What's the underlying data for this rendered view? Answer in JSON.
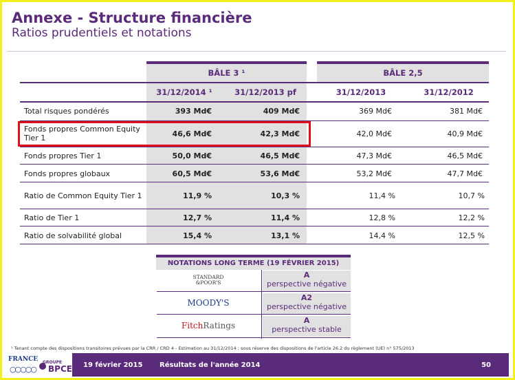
{
  "header": {
    "title": "Annexe - Structure financière",
    "subtitle": "Ratios prudentiels et notations"
  },
  "table": {
    "group_headers": [
      "BÂLE 3 ¹",
      "BÂLE 2,5"
    ],
    "columns": [
      "31/12/2014 ¹",
      "31/12/2013 pf",
      "31/12/2013",
      "31/12/2012"
    ],
    "rows": [
      {
        "label": "Total risques pondérés",
        "values": [
          "393 Md€",
          "409 Md€",
          "369 Md€",
          "381 Md€"
        ]
      },
      {
        "label": "Fonds propres Common Equity Tier 1",
        "values": [
          "46,6 Md€",
          "42,3 Md€",
          "42,0 Md€",
          "40,9 Md€"
        ]
      },
      {
        "label": "Fonds propres Tier 1",
        "values": [
          "50,0 Md€",
          "46,5 Md€",
          "47,3 Md€",
          "46,5 Md€"
        ]
      },
      {
        "label": "Fonds propres globaux",
        "values": [
          "60,5 Md€",
          "53,6 Md€",
          "53,2 Md€",
          "47,7 Md€"
        ]
      },
      {
        "label": "Ratio de Common Equity Tier 1",
        "values": [
          "11,9 %",
          "10,3 %",
          "11,4 %",
          "10,7 %"
        ]
      },
      {
        "label": "Ratio de Tier 1",
        "values": [
          "12,7 %",
          "11,4 %",
          "12,8 %",
          "12,2 %"
        ]
      },
      {
        "label": "Ratio de solvabilité global",
        "values": [
          "15,4 %",
          "13,1 %",
          "14,4 %",
          "12,5 %"
        ]
      }
    ]
  },
  "notations": {
    "title": "NOTATIONS LONG TERME (19 FÉVRIER 2015)",
    "agencies": [
      {
        "name_line1": "STANDARD",
        "name_line2": "&POOR'S",
        "rating": "A",
        "outlook": "perspective négative"
      },
      {
        "name": "MOODY'S",
        "rating": "A2",
        "outlook": "perspective négative"
      },
      {
        "name_a": "Fitch",
        "name_b": "Ratings",
        "rating": "A",
        "outlook": "perspective stable"
      }
    ]
  },
  "footnote": "¹ Tenant compte des dispositions transitoires prévues par la CRR / CRD 4 - Estimation au 31/12/2014 ; sous réserve des dispositions de l'article 26.2 du règlement (UE) n° 575/2013",
  "footer": {
    "logo_france": "FRANCE",
    "logo_groupe": "GROUPE",
    "logo_bpce": "BPCE",
    "date": "19 février 2015",
    "title": "Résultats de l'année 2014",
    "page": "50"
  },
  "colors": {
    "accent": "#5a2b7a",
    "highlight": "#e0101a",
    "frame": "#f2ef1a",
    "grey": "#e1e1e1"
  }
}
